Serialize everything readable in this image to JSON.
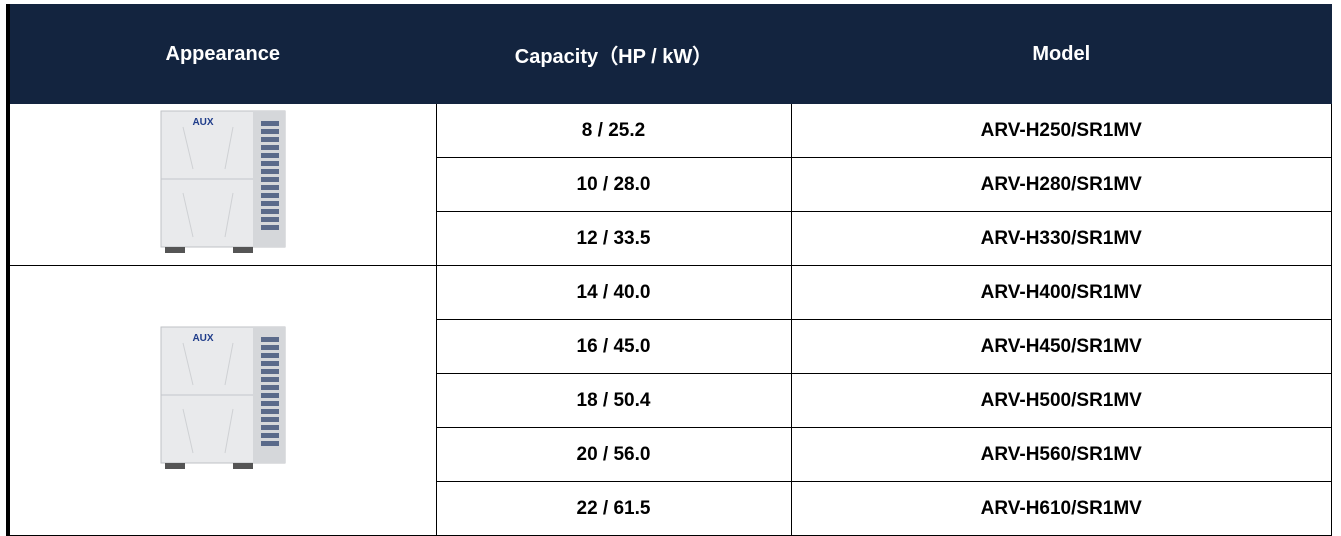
{
  "table": {
    "header": [
      "Appearance",
      "Capacity（HP / kW）",
      "Model"
    ],
    "groups": [
      {
        "logo": "AUX",
        "rows": [
          [
            "8 / 25.2",
            "ARV-H250/SR1MV"
          ],
          [
            "10 / 28.0",
            "ARV-H280/SR1MV"
          ],
          [
            "12 / 33.5",
            "ARV-H330/SR1MV"
          ]
        ]
      },
      {
        "logo": "AUX",
        "rows": [
          [
            "14 / 40.0",
            "ARV-H400/SR1MV"
          ],
          [
            "16 / 45.0",
            "ARV-H450/SR1MV"
          ],
          [
            "18 / 50.4",
            "ARV-H500/SR1MV"
          ],
          [
            "20 / 56.0",
            "ARV-H560/SR1MV"
          ],
          [
            "22 / 61.5",
            "ARV-H610/SR1MV"
          ]
        ]
      }
    ]
  }
}
